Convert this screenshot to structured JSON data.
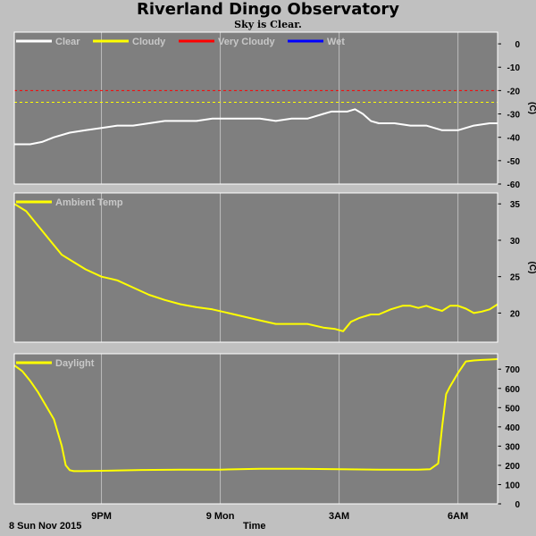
{
  "title": "Riverland Dingo Observatory",
  "subtitle": "Sky is Clear.",
  "footer": {
    "date_label": "8 Sun Nov 2015",
    "xlabel": "Time"
  },
  "x_ticks": [
    {
      "label": "9PM",
      "t": 1.0
    },
    {
      "label": "9 Mon",
      "t": 4.0
    },
    {
      "label": "3AM",
      "t": 7.0
    },
    {
      "label": "6AM",
      "t": 10.0
    }
  ],
  "x_range": [
    -1.2,
    11.0
  ],
  "colors": {
    "plot_bg": "#7f7f7f",
    "frame": "#ffffff",
    "grid": "#bdbdbd",
    "tick_text": "#000000"
  },
  "chart_data": [
    {
      "type": "line",
      "title": "",
      "ylabel": "(C)",
      "ylim": [
        -60,
        5
      ],
      "yticks": [
        0,
        -10,
        -20,
        -30,
        -40,
        -50,
        -60
      ],
      "legend_position": "top",
      "series": [
        {
          "name": "Clear",
          "color": "#ffffff",
          "x": [
            -1.2,
            -0.8,
            -0.5,
            -0.2,
            0.2,
            0.6,
            1.0,
            1.4,
            1.8,
            2.2,
            2.6,
            3.0,
            3.4,
            3.8,
            4.2,
            4.6,
            5.0,
            5.4,
            5.8,
            6.2,
            6.6,
            6.8,
            7.0,
            7.2,
            7.4,
            7.6,
            7.8,
            8.0,
            8.4,
            8.8,
            9.2,
            9.6,
            10.0,
            10.4,
            10.8,
            11.0
          ],
          "y": [
            -43,
            -43,
            -42,
            -40,
            -38,
            -37,
            -36,
            -35,
            -35,
            -34,
            -33,
            -33,
            -33,
            -32,
            -32,
            -32,
            -32,
            -33,
            -32,
            -32,
            -30,
            -29,
            -29,
            -29,
            -28,
            -30,
            -33,
            -34,
            -34,
            -35,
            -35,
            -37,
            -37,
            -35,
            -34,
            -34
          ]
        },
        {
          "name": "Cloudy",
          "color": "#ffff00",
          "value": -25,
          "style": "dashed"
        },
        {
          "name": "Very Cloudy",
          "color": "#ff0000",
          "value": -20,
          "style": "dashed"
        },
        {
          "name": "Wet",
          "color": "#0000ff"
        }
      ]
    },
    {
      "type": "line",
      "title": "",
      "ylabel": "(C)",
      "ylim": [
        16,
        36.5
      ],
      "yticks": [
        35,
        30,
        25,
        20
      ],
      "legend_position": "top",
      "series": [
        {
          "name": "Ambient Temp",
          "color": "#ffff00",
          "x": [
            -1.2,
            -0.9,
            -0.6,
            -0.3,
            0.0,
            0.3,
            0.6,
            1.0,
            1.4,
            1.8,
            2.2,
            2.6,
            3.0,
            3.4,
            3.8,
            4.2,
            4.6,
            5.0,
            5.4,
            5.8,
            6.2,
            6.6,
            6.9,
            7.1,
            7.3,
            7.5,
            7.8,
            8.0,
            8.3,
            8.6,
            8.8,
            9.0,
            9.2,
            9.4,
            9.6,
            9.8,
            10.0,
            10.2,
            10.4,
            10.6,
            10.8,
            11.0
          ],
          "y": [
            35,
            34,
            32,
            30,
            28,
            27,
            26,
            25,
            24.5,
            23.5,
            22.5,
            21.8,
            21.2,
            20.8,
            20.5,
            20,
            19.5,
            19,
            18.5,
            18.5,
            18.5,
            18,
            17.8,
            17.5,
            18.8,
            19.3,
            19.8,
            19.8,
            20.5,
            21,
            21,
            20.7,
            21,
            20.6,
            20.3,
            21,
            21,
            20.6,
            20,
            20.2,
            20.5,
            21.2
          ]
        }
      ]
    },
    {
      "type": "line",
      "title": "",
      "ylabel": "",
      "ylim": [
        0,
        780
      ],
      "yticks": [
        700,
        600,
        500,
        400,
        300,
        200,
        100,
        0
      ],
      "legend_position": "top",
      "series": [
        {
          "name": "Daylight",
          "color": "#ffff00",
          "x": [
            -1.2,
            -1.0,
            -0.8,
            -0.6,
            -0.4,
            -0.2,
            0.0,
            0.1,
            0.2,
            0.3,
            0.5,
            1.0,
            2.0,
            3.0,
            4.0,
            5.0,
            6.0,
            7.0,
            8.0,
            9.0,
            9.3,
            9.5,
            9.6,
            9.7,
            9.8,
            10.0,
            10.2,
            10.4,
            10.6,
            10.8,
            11.0
          ],
          "y": [
            720,
            690,
            640,
            580,
            510,
            440,
            300,
            200,
            175,
            170,
            170,
            172,
            176,
            178,
            178,
            182,
            182,
            180,
            178,
            178,
            180,
            210,
            400,
            570,
            610,
            680,
            740,
            745,
            748,
            750,
            752
          ]
        }
      ]
    }
  ]
}
